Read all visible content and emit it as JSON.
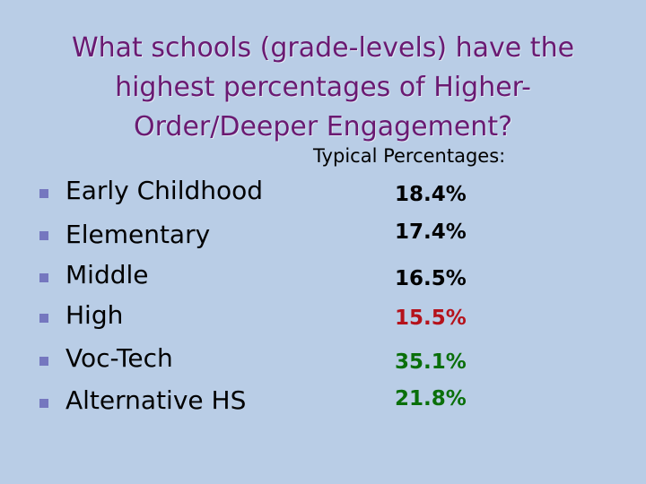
{
  "slide": {
    "title_lines": [
      "What schools (grade-levels) have the",
      "highest percentages of Higher-",
      "Order/Deeper Engagement?"
    ],
    "subheading": "Typical Percentages:",
    "rows": [
      {
        "label": "Early Childhood",
        "value": "18.4%",
        "value_color": "#000000"
      },
      {
        "label": "Elementary",
        "value": "17.4%",
        "value_color": "#000000"
      },
      {
        "label": "Middle",
        "value": "16.5%",
        "value_color": "#000000"
      },
      {
        "label": "High",
        "value": "15.5%",
        "value_color": "#b5121b"
      },
      {
        "label": "Voc-Tech",
        "value": "35.1%",
        "value_color": "#0a6f0a"
      },
      {
        "label": "Alternative HS",
        "value": "21.8%",
        "value_color": "#0a6f0a"
      }
    ],
    "colors": {
      "background": "#b9cde6",
      "title": "#6a1a72",
      "bullet": "#7577bf"
    }
  }
}
